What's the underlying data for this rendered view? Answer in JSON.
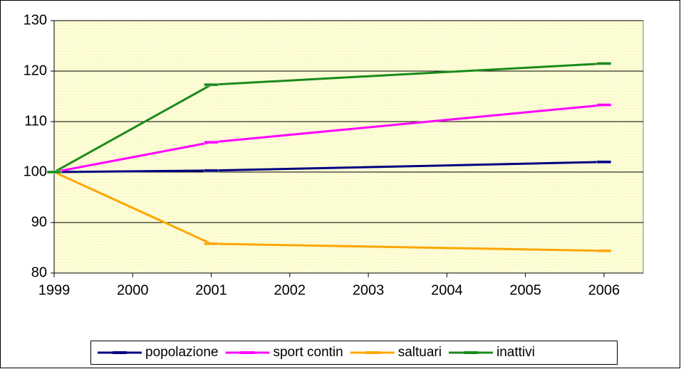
{
  "chart_data": {
    "type": "line",
    "x": [
      1999,
      2001,
      2006
    ],
    "series": [
      {
        "name": "popolazione",
        "color": "#000080",
        "values": [
          100,
          100.3,
          102.0
        ]
      },
      {
        "name": "sport contin",
        "color": "#ff00ff",
        "values": [
          100,
          105.9,
          113.3
        ]
      },
      {
        "name": "saltuari",
        "color": "#ffa500",
        "values": [
          100,
          85.8,
          84.4
        ]
      },
      {
        "name": "inattivi",
        "color": "#1a8a1a",
        "values": [
          100,
          117.3,
          121.5
        ]
      }
    ],
    "xlim": [
      1999,
      2006.5
    ],
    "xticks": [
      1999,
      2000,
      2001,
      2002,
      2003,
      2004,
      2005,
      2006
    ],
    "ylim": [
      80,
      130
    ],
    "yticks": [
      80,
      90,
      100,
      110,
      120,
      130
    ],
    "grid": true,
    "legend": "bottom"
  }
}
